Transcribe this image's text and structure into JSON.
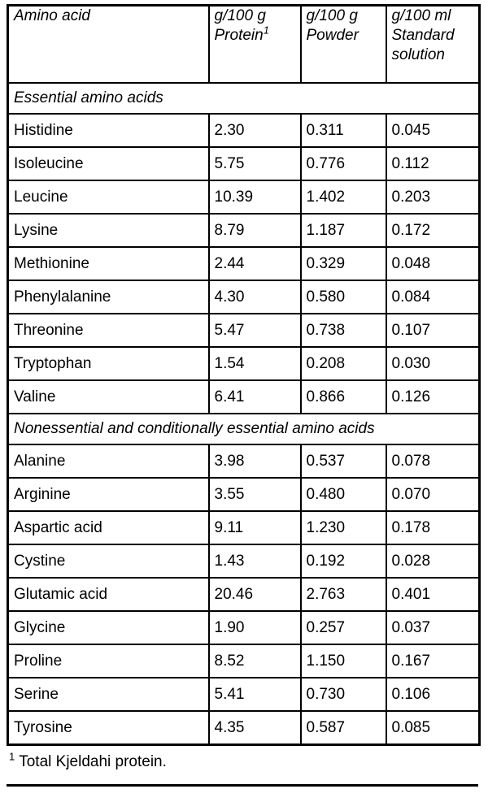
{
  "colors": {
    "text": "#000000",
    "border": "#000000",
    "background": "#ffffff"
  },
  "table": {
    "headers": [
      {
        "line1": "Amino acid",
        "line2": "",
        "sup": ""
      },
      {
        "line1": "g/100 g",
        "line2": "Protein",
        "sup": "1"
      },
      {
        "line1": "g/100 g",
        "line2": "Powder",
        "sup": ""
      },
      {
        "line1": "g/100 ml",
        "line2": "Standard solution",
        "sup": ""
      }
    ],
    "section1": {
      "label": "Essential amino acids",
      "rows": [
        {
          "name": "Histidine",
          "protein": "2.30",
          "powder": "0.311",
          "solution": "0.045"
        },
        {
          "name": "Isoleucine",
          "protein": "5.75",
          "powder": "0.776",
          "solution": "0.112"
        },
        {
          "name": "Leucine",
          "protein": "10.39",
          "powder": "1.402",
          "solution": "0.203"
        },
        {
          "name": "Lysine",
          "protein": "8.79",
          "powder": "1.187",
          "solution": "0.172"
        },
        {
          "name": "Methionine",
          "protein": "2.44",
          "powder": "0.329",
          "solution": "0.048"
        },
        {
          "name": "Phenylalanine",
          "protein": "4.30",
          "powder": "0.580",
          "solution": "0.084"
        },
        {
          "name": "Threonine",
          "protein": "5.47",
          "powder": "0.738",
          "solution": "0.107"
        },
        {
          "name": "Tryptophan",
          "protein": "1.54",
          "powder": "0.208",
          "solution": "0.030"
        },
        {
          "name": "Valine",
          "protein": "6.41",
          "powder": "0.866",
          "solution": "0.126"
        }
      ]
    },
    "section2": {
      "label": "Nonessential and conditionally essential amino acids",
      "rows": [
        {
          "name": "Alanine",
          "protein": "3.98",
          "powder": "0.537",
          "solution": "0.078"
        },
        {
          "name": "Arginine",
          "protein": "3.55",
          "powder": "0.480",
          "solution": "0.070"
        },
        {
          "name": "Aspartic acid",
          "protein": "9.11",
          "powder": "1.230",
          "solution": "0.178"
        },
        {
          "name": "Cystine",
          "protein": "1.43",
          "powder": "0.192",
          "solution": "0.028"
        },
        {
          "name": "Glutamic acid",
          "protein": "20.46",
          "powder": "2.763",
          "solution": "0.401"
        },
        {
          "name": "Glycine",
          "protein": "1.90",
          "powder": "0.257",
          "solution": "0.037"
        },
        {
          "name": "Proline",
          "protein": "8.52",
          "powder": "1.150",
          "solution": "0.167"
        },
        {
          "name": "Serine",
          "protein": "5.41",
          "powder": "0.730",
          "solution": "0.106"
        },
        {
          "name": "Tyrosine",
          "protein": "4.35",
          "powder": "0.587",
          "solution": "0.085"
        }
      ]
    }
  },
  "footnote": {
    "sup": "1",
    "text": "Total Kjeldahi protein."
  }
}
